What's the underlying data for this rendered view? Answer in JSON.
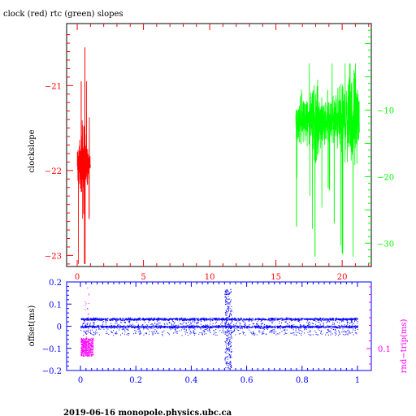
{
  "title": "clock (red) rtc (green) slopes",
  "footer": "2019-06-16  monopole.physics.ubc.ca",
  "colors": {
    "clock": "#ff0000",
    "rtc": "#00ff00",
    "offset": "#0000ff",
    "rndtrip": "#ff00ff",
    "frame": "#000000"
  },
  "chart_data": [
    {
      "type": "line",
      "title": "clock (red) rtc (green) slopes",
      "ylabel": "clockslope",
      "xlim": [
        -0.8,
        22.2
      ],
      "ylim_left": [
        -23.13,
        -20.27
      ],
      "ylim_right": [
        -33.5,
        3.0
      ],
      "xticks": [
        0,
        5,
        10,
        15,
        20
      ],
      "xtick_labels": [
        "0",
        "5",
        "10",
        "15",
        "20"
      ],
      "yticks_left": [
        -23,
        -22,
        -21
      ],
      "ytick_labels_left": [
        "−23",
        "−22",
        "−21"
      ],
      "yticks_right": [
        -30,
        -20,
        -10
      ],
      "ytick_labels_right": [
        "−30",
        "−20",
        "−10"
      ],
      "series": [
        {
          "axis": "left",
          "x_range": [
            0.0,
            1.0
          ],
          "center": -21.95,
          "envelope": [
            [
              0.0,
              0.3
            ],
            [
              0.1,
              0.5
            ],
            [
              0.25,
              0.35
            ],
            [
              0.4,
              0.9
            ],
            [
              0.5,
              0.8
            ],
            [
              0.6,
              0.5
            ],
            [
              0.75,
              0.35
            ],
            [
              0.9,
              0.25
            ],
            [
              1.0,
              0.15
            ]
          ],
          "min": -23.1,
          "max": -20.55
        },
        {
          "axis": "right",
          "x_range": [
            16.5,
            21.3
          ],
          "center": -11.5,
          "envelope": [
            [
              16.5,
              3.0
            ],
            [
              17.0,
              6.0
            ],
            [
              17.5,
              4.0
            ],
            [
              18.0,
              9.0
            ],
            [
              18.5,
              5.0
            ],
            [
              19.0,
              4.0
            ],
            [
              19.5,
              6.0
            ],
            [
              20.0,
              8.0
            ],
            [
              20.5,
              9.0
            ],
            [
              21.0,
              10.0
            ],
            [
              21.3,
              4.0
            ]
          ],
          "min": -32.0,
          "max": -3.0
        }
      ]
    },
    {
      "type": "scatter",
      "xlabel": "",
      "ylabel": "offset(ms)",
      "ylabel_right": "rnd−trip(ms)",
      "xlim": [
        -0.05,
        1.05
      ],
      "ylim": [
        -0.2,
        0.2
      ],
      "xticks": [
        0,
        0.2,
        0.4,
        0.6,
        0.8,
        1
      ],
      "xtick_labels": [
        "0",
        "0.2",
        "0.4",
        "0.6",
        "0.8",
        "1"
      ],
      "yticks": [
        -0.2,
        -0.1,
        0,
        0.1,
        0.2
      ],
      "ytick_labels": [
        "−0.2",
        "−0.1",
        "0",
        "0.1",
        "0.2"
      ],
      "yticks_right": [
        0.1
      ],
      "ytick_labels_right": [
        "0.1"
      ],
      "series": [
        {
          "axis": "left",
          "x_range": [
            0.0,
            1.0
          ],
          "bands": [
            0.033,
            -0.001
          ],
          "band_spread": 0.008,
          "scatter_range": [
            -0.04,
            0.04
          ],
          "spike": {
            "x": [
              0.52,
              0.545
            ],
            "range": [
              -0.19,
              0.17
            ]
          }
        },
        {
          "axis": "right",
          "x_range": [
            0.0,
            0.045
          ],
          "range": [
            0.09,
            0.115
          ],
          "spike_max": 0.19
        }
      ]
    }
  ]
}
